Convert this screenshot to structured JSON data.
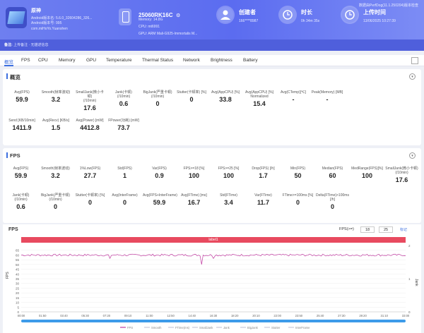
{
  "header": {
    "app_name": "原神",
    "app_version_line": "Android版本名: 5.6.0_32604286_326...",
    "app_version_code": "Android版本号: 995",
    "package": "com.miHoYo.Yuanshen",
    "device_name": "25060RK16C",
    "memory": "Memory: 14.8G",
    "cpu": "CPU: mt6991",
    "gpu": "GPU: ARM Mali-G925-Immortalis M...",
    "creator_label": "创建者",
    "creator_value": "166****8987",
    "duration_label": "时长",
    "duration_value": "0h 34m 35s",
    "upload_label": "上传时间",
    "upload_value": "13/06/2025 10:27:39",
    "watermark": "数据由PerfDog(11.1.250204)版本检查"
  },
  "subbar": {
    "label": "备注:",
    "text": "上传备注 · 无描述信息"
  },
  "tabs": [
    "概览",
    "FPS",
    "CPU",
    "Memory",
    "GPU",
    "Temperature",
    "Thermal Status",
    "Network",
    "Brightness",
    "Battery"
  ],
  "overview": {
    "title": "概览",
    "row1": [
      {
        "label": "Avg(FPS)",
        "value": "59.9"
      },
      {
        "label": "Smooth(帧率波动)",
        "value": "3.2"
      },
      {
        "label": "SmallJank(微小卡顿)\n(/10min)",
        "value": "17.6"
      },
      {
        "label": "Jank(卡顿)\n(/10min)",
        "value": "0.6"
      },
      {
        "label": "BigJank(严重卡顿)\n(/10min)",
        "value": "0"
      },
      {
        "label": "Stutter(卡顿率) [%]",
        "value": "0"
      },
      {
        "label": "Avg(AppCPU) [%]",
        "value": "33.8"
      },
      {
        "label": "Avg(AppCPU) [%]\nNormalized",
        "value": "15.4"
      },
      {
        "label": "Avg(CTemp)[℃]",
        "value": "-"
      },
      {
        "label": "Peak(Memory) [MB]",
        "value": "-"
      }
    ],
    "row2": [
      {
        "label": "Send [KB/10min]",
        "value": "1411.9"
      },
      {
        "label": "Avg(Recv) [KB/s]",
        "value": "1.5"
      },
      {
        "label": "Avg(Power) [mW]",
        "value": "4412.8"
      },
      {
        "label": "FPower(功耗) [mW]",
        "value": "73.7"
      }
    ]
  },
  "fps_section": {
    "title": "FPS",
    "row1": [
      {
        "label": "Avg(FPS)",
        "value": "59.9"
      },
      {
        "label": "Smooth(帧率波动)",
        "value": "3.2"
      },
      {
        "label": "1%Low(FPS)",
        "value": "27.7"
      },
      {
        "label": "Std(FPS)",
        "value": "1"
      },
      {
        "label": "Var(FPS)",
        "value": "0.9"
      },
      {
        "label": "FPS>=18 [%]",
        "value": "100"
      },
      {
        "label": "FPS>=25 [%]",
        "value": "100"
      },
      {
        "label": "Drop(FPS) [/h]",
        "value": "1.7"
      },
      {
        "label": "Min(FPS)",
        "value": "50"
      },
      {
        "label": "Median(FPS)",
        "value": "60"
      },
      {
        "label": "MedRange(FPS)[%]",
        "value": "100"
      },
      {
        "label": "SmallJank(微小卡顿)\n(/10min)",
        "value": "17.6"
      }
    ],
    "row2": [
      {
        "label": "Jank(卡顿)\n(/10min)",
        "value": "0.6"
      },
      {
        "label": "BigJank(严重卡顿)\n(/10min)",
        "value": "0"
      },
      {
        "label": "Stutter(卡顿率) [%]",
        "value": "0"
      },
      {
        "label": "Avg(InterFrame)",
        "value": "0"
      },
      {
        "label": "Avg(FPS+InterFrame)",
        "value": "59.9"
      },
      {
        "label": "Avg(FTime) [ms]",
        "value": "16.7"
      },
      {
        "label": "Std(FTime)",
        "value": "3.4"
      },
      {
        "label": "Var(FTime)",
        "value": "11.7"
      },
      {
        "label": "FTime>=100ms [%]",
        "value": "0"
      },
      {
        "label": "Delta(FTime)>100ms [/h]",
        "value": "0"
      }
    ]
  },
  "chart_controls": {
    "title": "FPS",
    "fps_ge_label": "FPS(>=)",
    "fps_ge_1": "18",
    "fps_ge_2": "25",
    "link": "标记"
  },
  "chart_data": {
    "type": "line",
    "label_band": "label1",
    "ylabel": "FPS",
    "y2label": "Jank",
    "ylim": [
      0,
      70
    ],
    "yticks": [
      0,
      5,
      10,
      15,
      20,
      25,
      30,
      35,
      40,
      45,
      50,
      55,
      60,
      65
    ],
    "y2ticks": [
      0,
      1,
      2
    ],
    "xticks": [
      "00:00",
      "01:50",
      "03:40",
      "05:30",
      "07:20",
      "09:10",
      "11:00",
      "12:50",
      "14:40",
      "16:30",
      "18:20",
      "20:10",
      "22:00",
      "23:50",
      "25:40",
      "27:30",
      "29:20",
      "31:10",
      "33:00"
    ],
    "series": [
      {
        "name": "FPS",
        "color": "#c03aa0",
        "baseline": 59.9,
        "min_dip": 50
      }
    ],
    "legend": [
      "FPS",
      "Smooth",
      "FTime(ms)",
      "SmallJank",
      "Jank",
      "BigJank",
      "Stutter",
      "InterFrame"
    ]
  },
  "colors": {
    "accent": "#3d6fe0",
    "band": "#e84a5f",
    "fps_line": "#c03aa0"
  }
}
